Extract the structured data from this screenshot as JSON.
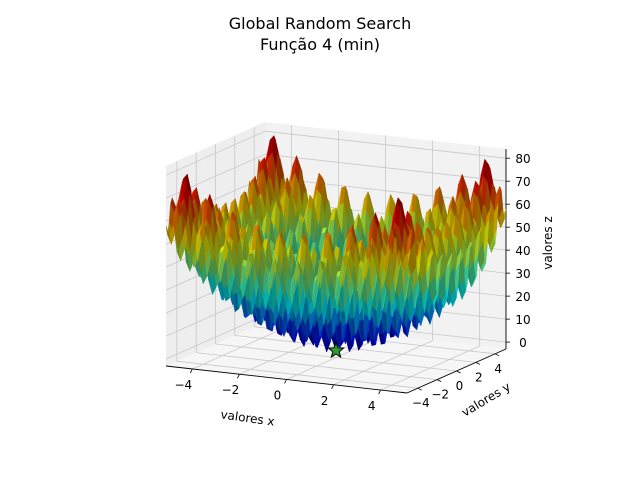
{
  "chart_data": {
    "type": "surface3d",
    "title": "Global Random Search",
    "subtitle": "Função 4 (min)",
    "xlabel": "valores x",
    "ylabel": "valores y",
    "zlabel": "valores z",
    "xlim": [
      -5.12,
      5.12
    ],
    "ylim": [
      -5.12,
      5.12
    ],
    "zlim": [
      -3,
      84
    ],
    "x_ticks": [
      "−4",
      "−2",
      "0",
      "2",
      "4"
    ],
    "y_ticks": [
      "−4",
      "−2",
      "0",
      "2",
      "4"
    ],
    "z_ticks": [
      "0",
      "10",
      "20",
      "30",
      "40",
      "50",
      "60",
      "70",
      "80"
    ],
    "function": "rastrigin",
    "colormap": "jet",
    "grid": true,
    "minimum": {
      "x": 0,
      "y": 0,
      "z": 0
    },
    "marker_color": "#2ca02c",
    "marker_shape": "star"
  }
}
